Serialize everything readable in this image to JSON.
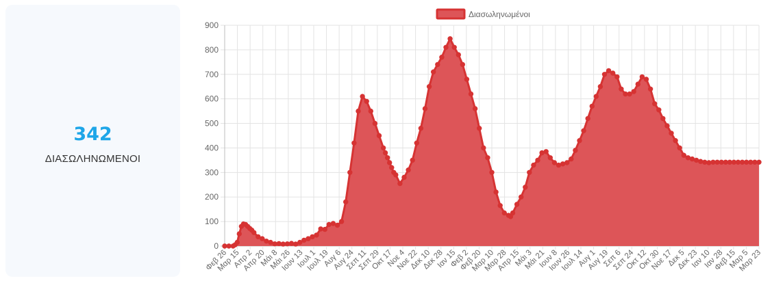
{
  "stat_card": {
    "value": "342",
    "label": "ΔΙΑΣΩΛΗΝΩΜΕΝΟΙ"
  },
  "chart_data": {
    "type": "area",
    "title": "",
    "xlabel": "",
    "ylabel": "",
    "ylim": [
      0,
      900
    ],
    "yticks": [
      0,
      100,
      200,
      300,
      400,
      500,
      600,
      700,
      800,
      900
    ],
    "grid": true,
    "legend_position": "top",
    "colors": {
      "fill": "#dd5558",
      "line": "#d63333",
      "legend_fill": "#dd5558",
      "legend_border": "#d63333"
    },
    "xtick_labels": [
      "Φεβ 26",
      "Μαρ 15",
      "Απρ 2",
      "Απρ 20",
      "Μάι 8",
      "Μάι 26",
      "Ιουν 13",
      "Ιουλ 1",
      "Ιουλ 19",
      "Αυγ 6",
      "Αυγ 24",
      "Σεπ 11",
      "Σεπ 29",
      "Οκτ 17",
      "Νοε 4",
      "Νοε 22",
      "Δεκ 10",
      "Δεκ 28",
      "Ιαν 15",
      "Φεβ 2",
      "Φεβ 20",
      "Μαρ 10",
      "Μαρ 28",
      "Απρ 15",
      "Μάι 3",
      "Μάι 21",
      "Ιουν 8",
      "Ιουν 26",
      "Ιουλ 14",
      "Αυγ 1",
      "Αυγ 19",
      "Σεπ 6",
      "Σεπ 24",
      "Οκτ 12",
      "Οκτ 30",
      "Νοε 17",
      "Δεκ 5",
      "Δεκ 23",
      "Ιαν 10",
      "Ιαν 28",
      "Φεβ 15",
      "Μαρ 5",
      "Μαρ 23"
    ],
    "series": [
      {
        "name": "Διασωληνωμένοι",
        "x": [
          0,
          6,
          12,
          15,
          18,
          21,
          24,
          27,
          30,
          33,
          36,
          39,
          42,
          48,
          54,
          60,
          66,
          72,
          78,
          84,
          90,
          96,
          102,
          108,
          114,
          120,
          126,
          132,
          138,
          144,
          150,
          156,
          162,
          168,
          174,
          180,
          186,
          192,
          198,
          204,
          210,
          216,
          222,
          228,
          231,
          234,
          237,
          240,
          243,
          246,
          252,
          258,
          264,
          270,
          276,
          282,
          288,
          294,
          300,
          306,
          312,
          318,
          324,
          330,
          336,
          342,
          348,
          354,
          360,
          366,
          372,
          378,
          384,
          390,
          396,
          402,
          408,
          411,
          414,
          420,
          426,
          432,
          438,
          444,
          450,
          456,
          462,
          468,
          474,
          480,
          486,
          492,
          498,
          504,
          510,
          516,
          522,
          528,
          534,
          540,
          546,
          552,
          558,
          564,
          570,
          576,
          582,
          588,
          594,
          600,
          606,
          612,
          618,
          624,
          630,
          636,
          642,
          648,
          654,
          660,
          666,
          672,
          678,
          684,
          690,
          696,
          702,
          708,
          714,
          720,
          726,
          732,
          738,
          744,
          750,
          756,
          762,
          768
        ],
        "values": [
          0,
          0,
          0,
          5,
          15,
          50,
          80,
          90,
          88,
          80,
          72,
          65,
          55,
          38,
          30,
          20,
          15,
          9,
          10,
          8,
          9,
          11,
          8,
          15,
          24,
          30,
          38,
          45,
          70,
          68,
          88,
          92,
          85,
          100,
          180,
          300,
          420,
          550,
          610,
          590,
          550,
          500,
          450,
          400,
          380,
          360,
          340,
          320,
          300,
          290,
          255,
          280,
          310,
          350,
          420,
          480,
          560,
          650,
          710,
          740,
          770,
          810,
          845,
          810,
          780,
          740,
          680,
          620,
          560,
          480,
          400,
          360,
          300,
          220,
          165,
          135,
          125,
          120,
          135,
          170,
          200,
          240,
          300,
          330,
          350,
          380,
          385,
          360,
          340,
          330,
          335,
          340,
          355,
          390,
          430,
          470,
          520,
          570,
          610,
          650,
          700,
          715,
          705,
          690,
          640,
          620,
          620,
          630,
          660,
          690,
          680,
          640,
          580,
          555,
          520,
          490,
          460,
          430,
          400,
          370,
          360,
          355,
          350,
          345,
          342,
          340,
          342,
          342,
          342,
          342,
          342,
          342,
          342,
          342,
          342,
          342,
          342,
          342
        ]
      }
    ]
  }
}
